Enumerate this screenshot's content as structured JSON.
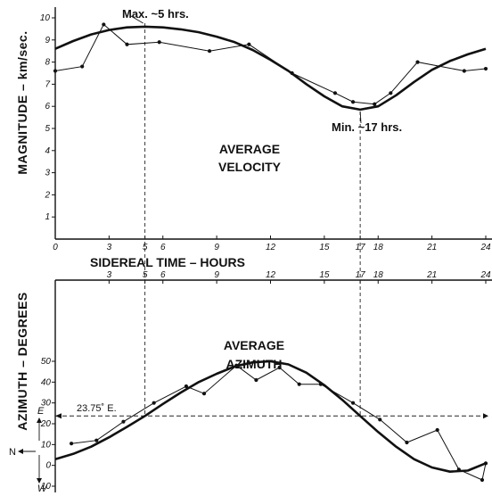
{
  "chart_data": [
    {
      "type": "line",
      "title": "",
      "xlabel": "SIDEREAL TIME – HOURS",
      "ylabel": "MAGNITUDE – km/sec.",
      "xlim": [
        0,
        24
      ],
      "ylim": [
        0,
        10
      ],
      "x_ticks": [
        0,
        3,
        5,
        6,
        9,
        12,
        15,
        17,
        18,
        21,
        24
      ],
      "x_tick_labels": [
        "0",
        "3",
        "5",
        "6",
        "9",
        "12",
        "15",
        "17",
        "18",
        "21",
        "24"
      ],
      "y_ticks": [
        1,
        2,
        3,
        4,
        5,
        6,
        7,
        8,
        9,
        10
      ],
      "y_tick_labels": [
        "1",
        "2",
        "3",
        "4",
        "5",
        "6",
        "7",
        "8",
        "9",
        "10"
      ],
      "center_label": [
        "AVERAGE",
        "VELOCITY"
      ],
      "series": [
        {
          "style": "observed",
          "x": [
            0,
            1.5,
            2.7,
            4,
            5.8,
            8.6,
            10.8,
            13.2,
            15.6,
            16.6,
            17.8,
            18.7,
            20.2,
            22.8,
            24
          ],
          "y": [
            7.6,
            7.8,
            9.7,
            8.8,
            8.9,
            8.5,
            8.8,
            7.5,
            6.6,
            6.2,
            6.1,
            6.6,
            8.0,
            7.6,
            7.7
          ]
        },
        {
          "style": "fitted",
          "x": [
            0,
            1,
            2,
            3,
            4,
            5,
            6,
            7,
            8,
            9,
            10,
            11,
            12,
            13,
            14,
            15,
            16,
            17,
            18,
            19,
            20,
            21,
            22,
            23,
            24
          ],
          "y": [
            8.6,
            8.95,
            9.25,
            9.45,
            9.57,
            9.6,
            9.57,
            9.48,
            9.35,
            9.15,
            8.9,
            8.55,
            8.1,
            7.6,
            7.0,
            6.45,
            6.0,
            5.85,
            6.0,
            6.5,
            7.1,
            7.65,
            8.05,
            8.35,
            8.6
          ]
        }
      ],
      "annotations": [
        {
          "text": "Max. ~5 hrs.",
          "x": 5
        },
        {
          "text": "Min. ~17 hrs.",
          "x": 17
        }
      ]
    },
    {
      "type": "line",
      "title": "",
      "xlabel": "",
      "ylabel": "AZIMUTH – DEGREES",
      "xlim": [
        0,
        24
      ],
      "ylim": [
        -10,
        50
      ],
      "x_ticks": [
        3,
        5,
        6,
        9,
        12,
        15,
        17,
        18,
        21,
        24
      ],
      "x_tick_labels": [
        "3",
        "5",
        "6",
        "9",
        "12",
        "15",
        "17",
        "18",
        "21",
        "24"
      ],
      "y_ticks": [
        50,
        40,
        30,
        20,
        10,
        0,
        -10
      ],
      "y_tick_labels": [
        "50",
        "40",
        "30",
        "20",
        "10",
        "0",
        "10"
      ],
      "center_label": [
        "AVERAGE",
        "AZIMUTH"
      ],
      "reference_line": {
        "label": "23.75˚ E.",
        "y": 23.75
      },
      "compass": {
        "east": "E",
        "west": "W",
        "north": "N"
      },
      "series": [
        {
          "style": "observed",
          "x": [
            0.9,
            2.3,
            3.8,
            5.5,
            7.3,
            8.3,
            10.1,
            11.2,
            12.5,
            13.6,
            14.8,
            16.6,
            18.1,
            19.6,
            21.3,
            22.5,
            23.8,
            24
          ],
          "y": [
            10.5,
            12,
            21,
            30,
            38,
            34.5,
            48,
            41,
            47,
            39,
            39,
            30,
            22,
            11,
            17,
            -2,
            -7,
            1
          ]
        },
        {
          "style": "fitted",
          "x": [
            0,
            1,
            2,
            3,
            4,
            5,
            6,
            7,
            8,
            9,
            10,
            11,
            12,
            13,
            14,
            15,
            16,
            17,
            18,
            19,
            20,
            21,
            22,
            23,
            24
          ],
          "y": [
            3,
            5.5,
            9,
            13.5,
            18.5,
            23.75,
            29.5,
            35,
            40,
            44,
            47.5,
            49.5,
            50,
            48.5,
            44.5,
            38.5,
            31.5,
            23.75,
            16,
            9,
            3,
            -1,
            -3,
            -2.5,
            1
          ]
        }
      ]
    }
  ]
}
